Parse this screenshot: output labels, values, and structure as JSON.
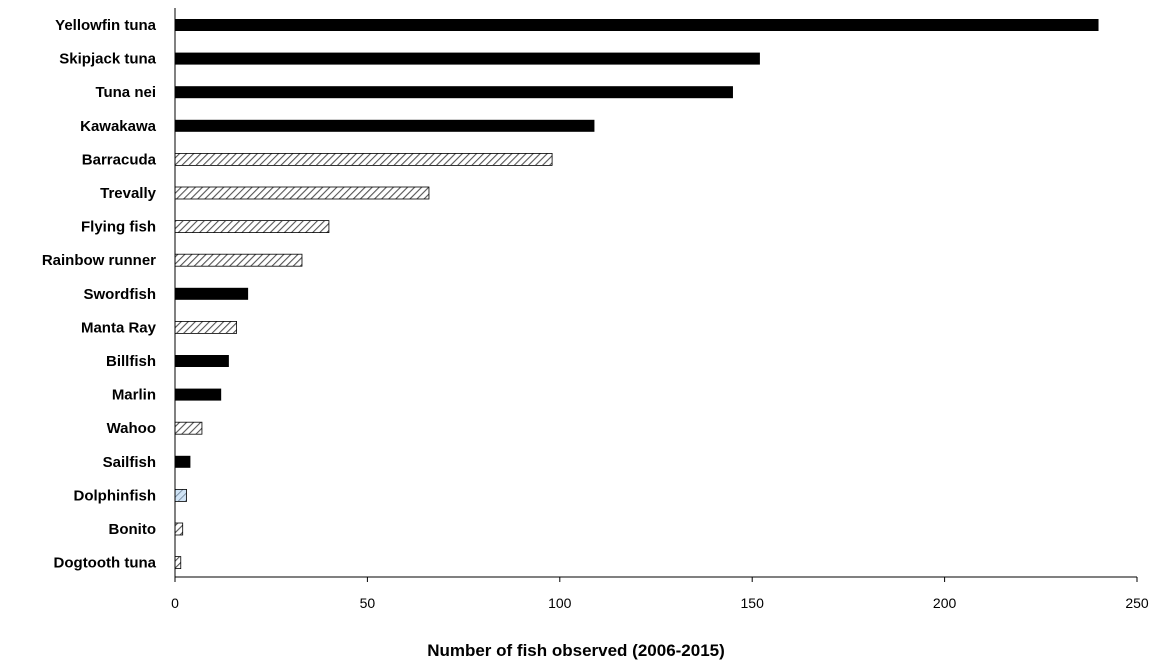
{
  "chart_data": {
    "type": "bar",
    "orientation": "horizontal",
    "title": "",
    "xlabel": "Number of fish observed (2006-2015)",
    "ylabel": "",
    "xlim": [
      0,
      250
    ],
    "x_ticks": [
      "0",
      "50",
      "100",
      "150",
      "200",
      "250"
    ],
    "grid": false,
    "legend": "none",
    "categories": [
      "Yellowfin tuna",
      "Skipjack tuna",
      "Tuna nei",
      "Kawakawa",
      "Barracuda",
      "Trevally",
      "Flying fish",
      "Rainbow runner",
      "Swordfish",
      "Manta Ray",
      "Billfish",
      "Marlin",
      "Wahoo",
      "Sailfish",
      "Dolphinfish",
      "Bonito",
      "Dogtooth tuna"
    ],
    "values": [
      240,
      152,
      145,
      109,
      98,
      66,
      40,
      33,
      19,
      16,
      14,
      12,
      7,
      4,
      3,
      2,
      1.5
    ],
    "bar_fill": [
      "solid",
      "solid",
      "solid",
      "solid",
      "hatched",
      "hatched",
      "hatched",
      "hatched",
      "solid",
      "hatched",
      "solid",
      "solid",
      "hatched",
      "solid",
      "hatched-blue",
      "hatched",
      "hatched"
    ],
    "colors": {
      "solid": "#000000",
      "hatched_bg": "#ffffff",
      "hatch_line": "#555555",
      "hatched_blue_bg": "#cfe3f5"
    }
  }
}
